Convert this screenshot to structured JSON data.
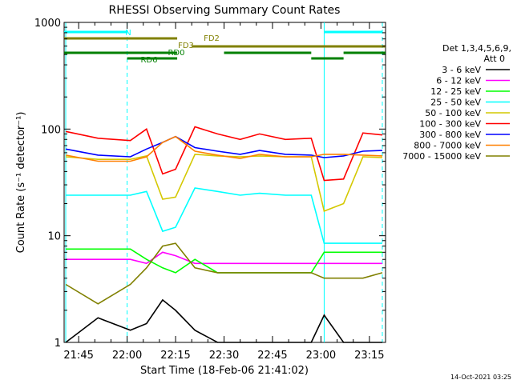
{
  "chart_data": {
    "type": "line",
    "title": "RHESSI Observing Summary Count Rates",
    "xlabel": "Start Time (18-Feb-06 21:41:02)",
    "ylabel": "Count Rate (s⁻¹ detector⁻¹)",
    "yscale": "log",
    "ylim": [
      1,
      1000
    ],
    "y_ticks": [
      1,
      10,
      100,
      1000
    ],
    "y_tick_labels": [
      "1",
      "10",
      "100",
      "1000"
    ],
    "xlim_minutes": [
      -0.5,
      99
    ],
    "x_ticks_minutes": [
      4,
      19,
      34,
      49,
      64,
      79,
      94
    ],
    "x_tick_labels": [
      "21:45",
      "22:00",
      "22:15",
      "22:30",
      "22:45",
      "23:00",
      "23:15"
    ],
    "legend": {
      "placement": "right",
      "header": [
        "Det 1,3,4,5,6,9,",
        "Att 0"
      ]
    },
    "series": [
      {
        "name": "3 - 6 keV",
        "color": "#000000",
        "x": [
          0,
          10,
          20,
          25,
          30,
          34,
          40,
          47,
          54,
          60,
          68,
          76,
          80,
          86,
          92,
          98
        ],
        "y": [
          1.0,
          1.7,
          1.3,
          1.5,
          2.5,
          2.0,
          1.3,
          1.0,
          1.0,
          1.0,
          1.0,
          1.0,
          1.8,
          1.0,
          1.0,
          1.0
        ]
      },
      {
        "name": "6 - 12 keV",
        "color": "#ff00ff",
        "x": [
          0,
          10,
          20,
          25,
          30,
          34,
          40,
          47,
          54,
          60,
          68,
          76,
          80,
          86,
          92,
          98
        ],
        "y": [
          6.0,
          6.0,
          6.0,
          5.5,
          7.0,
          6.5,
          5.5,
          5.5,
          5.5,
          5.5,
          5.5,
          5.5,
          5.5,
          5.5,
          5.5,
          5.5
        ]
      },
      {
        "name": "12 - 25 keV",
        "color": "#00ff00",
        "x": [
          0,
          10,
          20,
          25,
          30,
          34,
          40,
          47,
          54,
          60,
          68,
          76,
          80,
          86,
          92,
          98
        ],
        "y": [
          7.5,
          7.5,
          7.5,
          6.0,
          5.0,
          4.5,
          6.0,
          4.5,
          4.5,
          4.5,
          4.5,
          4.5,
          7.0,
          7.0,
          7.0,
          7.0
        ]
      },
      {
        "name": "25 - 50 keV",
        "color": "#00ffff",
        "x": [
          0,
          10,
          20,
          25,
          30,
          34,
          40,
          47,
          54,
          60,
          68,
          76,
          80,
          86,
          92,
          98
        ],
        "y": [
          24,
          24,
          24,
          26,
          11,
          12,
          28,
          26,
          24,
          25,
          24,
          24,
          8.5,
          8.5,
          8.5,
          8.5
        ]
      },
      {
        "name": "50 - 100 keV",
        "color": "#d4c800",
        "x": [
          0,
          10,
          20,
          25,
          30,
          34,
          40,
          47,
          54,
          60,
          68,
          76,
          80,
          86,
          92,
          98
        ],
        "y": [
          55,
          52,
          52,
          56,
          22,
          23,
          58,
          56,
          55,
          56,
          55,
          55,
          17,
          20,
          55,
          54
        ]
      },
      {
        "name": "100 - 300 keV",
        "color": "#ff0000",
        "x": [
          0,
          10,
          20,
          25,
          30,
          34,
          40,
          47,
          54,
          60,
          68,
          76,
          80,
          86,
          92,
          98
        ],
        "y": [
          95,
          82,
          78,
          100,
          38,
          42,
          105,
          90,
          80,
          90,
          80,
          82,
          33,
          34,
          92,
          88
        ]
      },
      {
        "name": "300 - 800 keV",
        "color": "#0000ff",
        "x": [
          0,
          10,
          20,
          25,
          30,
          34,
          40,
          47,
          54,
          60,
          68,
          76,
          80,
          86,
          92,
          98
        ],
        "y": [
          65,
          57,
          55,
          65,
          75,
          85,
          67,
          62,
          58,
          63,
          58,
          57,
          54,
          56,
          62,
          63
        ]
      },
      {
        "name": "800 - 7000 keV",
        "color": "#ff8000",
        "x": [
          0,
          10,
          20,
          25,
          30,
          34,
          40,
          47,
          54,
          60,
          68,
          76,
          80,
          86,
          92,
          98
        ],
        "y": [
          57,
          50,
          50,
          55,
          75,
          85,
          62,
          57,
          53,
          58,
          55,
          55,
          58,
          58,
          57,
          56
        ]
      },
      {
        "name": "7000 - 15000 keV",
        "color": "#808000",
        "x": [
          0,
          10,
          20,
          25,
          30,
          34,
          40,
          47,
          54,
          60,
          68,
          76,
          80,
          86,
          92,
          98
        ],
        "y": [
          3.5,
          2.3,
          3.5,
          5.0,
          8.0,
          8.5,
          5.0,
          4.5,
          4.5,
          4.5,
          4.5,
          4.5,
          4.0,
          4.0,
          4.0,
          4.5
        ]
      }
    ],
    "flag_bars": [
      {
        "label": "N",
        "color": "#00ffff",
        "segments": [
          [
            -0.5,
            19
          ],
          [
            80,
            98
          ]
        ]
      },
      {
        "label": "FD2",
        "color": "#808000",
        "segments": [
          [
            -0.5,
            34.5
          ]
        ]
      },
      {
        "label": "FD3",
        "color": "#808000",
        "segments": [
          [
            39,
            99
          ]
        ]
      },
      {
        "label": "RD0",
        "color": "#008000",
        "segments": [
          [
            -0.5,
            34.5
          ],
          [
            49,
            76
          ],
          [
            86,
            99
          ]
        ]
      },
      {
        "label": "RD6",
        "color": "#008000",
        "segments": [
          [
            19,
            34.5
          ],
          [
            76,
            86
          ]
        ]
      }
    ],
    "vertical_lines": [
      {
        "x": 0,
        "color": "#00ffff",
        "style": "solid"
      },
      {
        "x": 19,
        "color": "#00ffff",
        "style": "dashed"
      },
      {
        "x": 80,
        "color": "#00ffff",
        "style": "solid"
      },
      {
        "x": 98,
        "color": "#00ffff",
        "style": "dashed"
      }
    ],
    "footer_date": "14-Oct-2021 03:25"
  }
}
